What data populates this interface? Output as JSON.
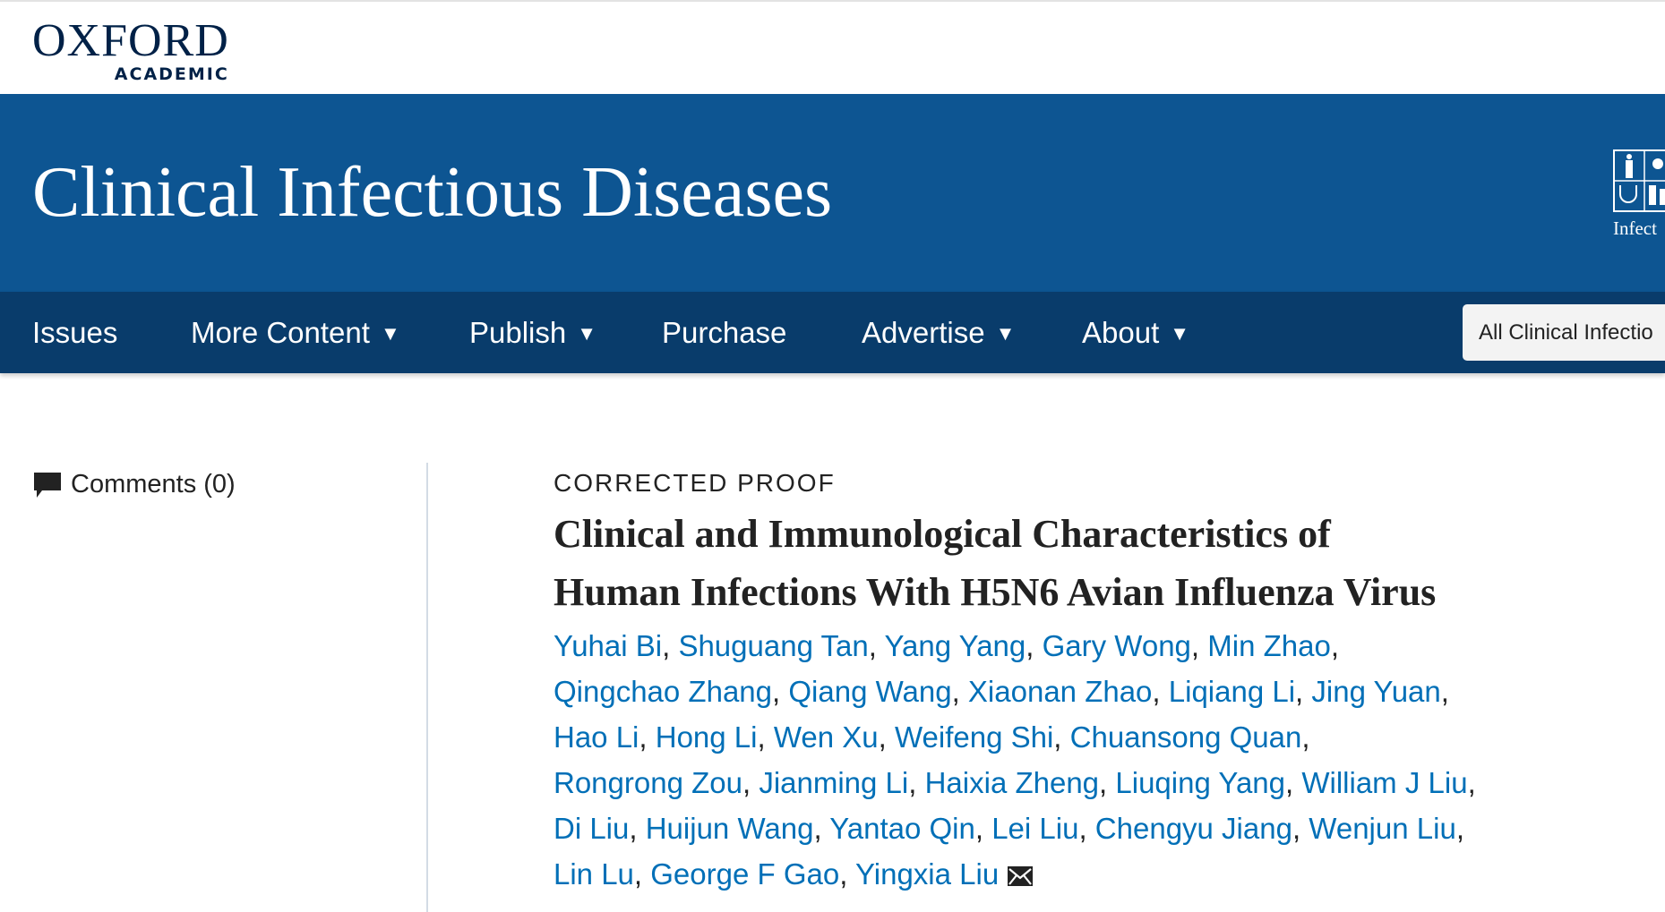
{
  "brand": {
    "logo_main": "OXFORD",
    "logo_sub": "ACADEMIC"
  },
  "journal": {
    "title": "Clinical Infectious Diseases",
    "society_text": "Infect"
  },
  "nav": {
    "items": [
      {
        "label": "Issues",
        "dropdown": false
      },
      {
        "label": "More Content",
        "dropdown": true
      },
      {
        "label": "Publish",
        "dropdown": true
      },
      {
        "label": "Purchase",
        "dropdown": false
      },
      {
        "label": "Advertise",
        "dropdown": true
      },
      {
        "label": "About",
        "dropdown": true
      }
    ],
    "caret": "▼",
    "search_scope": "All Clinical Infectio"
  },
  "sidebar": {
    "comments_label": "Comments (0)",
    "comments_icon": "speech-bubble-icon"
  },
  "article": {
    "status": "CORRECTED PROOF",
    "title_lines": [
      "Clinical and Immunological Characteristics of",
      "Human Infections With H5N6 Avian Influenza Virus"
    ],
    "author_lines": [
      [
        "Yuhai Bi",
        "Shuguang Tan",
        "Yang Yang",
        "Gary Wong",
        "Min Zhao"
      ],
      [
        "Qingchao Zhang",
        "Qiang Wang",
        "Xiaonan Zhao",
        "Liqiang Li",
        "Jing Yuan"
      ],
      [
        "Hao Li",
        "Hong Li",
        "Wen Xu",
        "Weifeng Shi",
        "Chuansong Quan"
      ],
      [
        "Rongrong Zou",
        "Jianming Li",
        "Haixia Zheng",
        "Liuqing Yang",
        "William J Liu"
      ],
      [
        "Di Liu",
        "Huijun Wang",
        "Yantao Qin",
        "Lei Liu",
        "Chengyu Jiang",
        "Wenjun Liu"
      ],
      [
        "Lin Lu",
        "George F Gao",
        "Yingxia Liu"
      ]
    ],
    "correspondence_icon": "envelope-icon"
  },
  "colors": {
    "header_blue": "#0d5592",
    "nav_blue": "#093c6b",
    "link": "#006fb7",
    "oxford_navy": "#002147"
  }
}
